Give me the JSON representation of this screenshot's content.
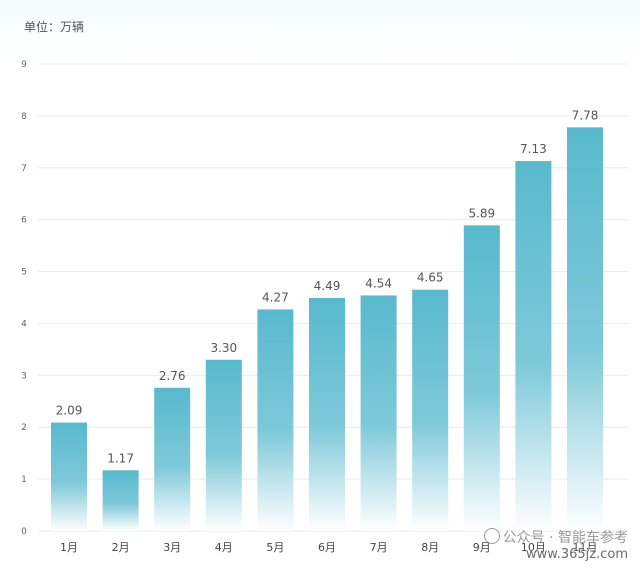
{
  "chart_data": {
    "type": "bar",
    "unit_label": "单位：万辆",
    "categories": [
      "1月",
      "2月",
      "3月",
      "4月",
      "5月",
      "6月",
      "7月",
      "8月",
      "9月",
      "10月",
      "11月"
    ],
    "values": [
      2.09,
      1.17,
      2.76,
      3.3,
      4.27,
      4.49,
      4.54,
      4.65,
      5.89,
      7.13,
      7.78
    ],
    "value_labels": [
      "2.09",
      "1.17",
      "2.76",
      "3.30",
      "4.27",
      "4.49",
      "4.54",
      "4.65",
      "5.89",
      "7.13",
      "7.78"
    ],
    "y_ticks": [
      "0",
      "1",
      "2",
      "3",
      "4",
      "5",
      "6",
      "7",
      "8",
      "9"
    ],
    "ylim": [
      0,
      9
    ],
    "grid": true,
    "bar_color_top": "#58b9cd",
    "bar_color_bottom": "#ffffff"
  },
  "watermark": {
    "account": "公众号 · 智能车参考",
    "site": "www.365jz.com"
  }
}
